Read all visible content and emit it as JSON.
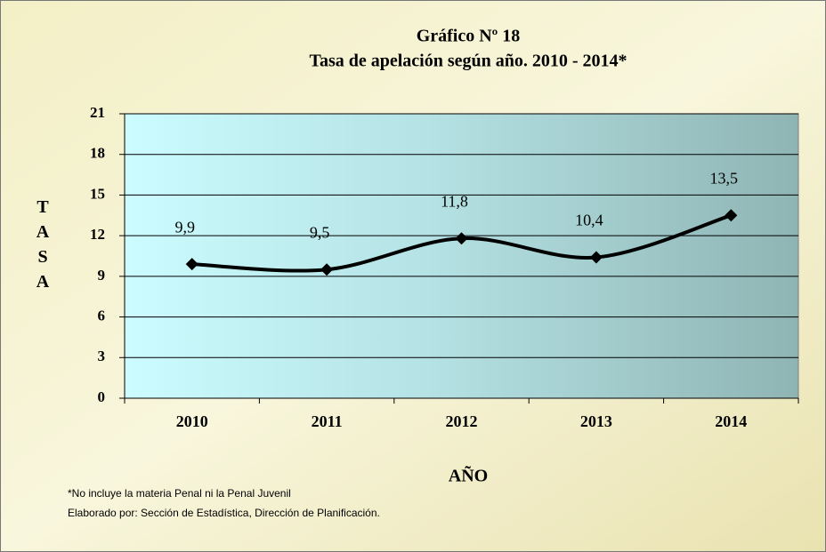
{
  "chart_data": {
    "type": "line",
    "title": "Gráfico Nº 18",
    "subtitle": "Tasa de apelación según año. 2010 - 2014*",
    "x_label": "AÑO",
    "y_label": "TASA",
    "categories": [
      "2010",
      "2011",
      "2012",
      "2013",
      "2014"
    ],
    "series": [
      {
        "name": "Tasa",
        "color": "#000000",
        "values": [
          9.9,
          9.5,
          11.8,
          10.4,
          13.5
        ],
        "value_labels": [
          "9,9",
          "9,5",
          "11,8",
          "10,4",
          "13,5"
        ]
      }
    ],
    "ylim": [
      0,
      21
    ],
    "yticks": [
      0,
      3,
      6,
      9,
      12,
      15,
      18,
      21
    ],
    "grid": true,
    "notes": [
      "*No incluye la materia Penal ni  la Penal Juvenil",
      "Elaborado por: Sección de Estadística,  Dirección de Planificación."
    ]
  }
}
